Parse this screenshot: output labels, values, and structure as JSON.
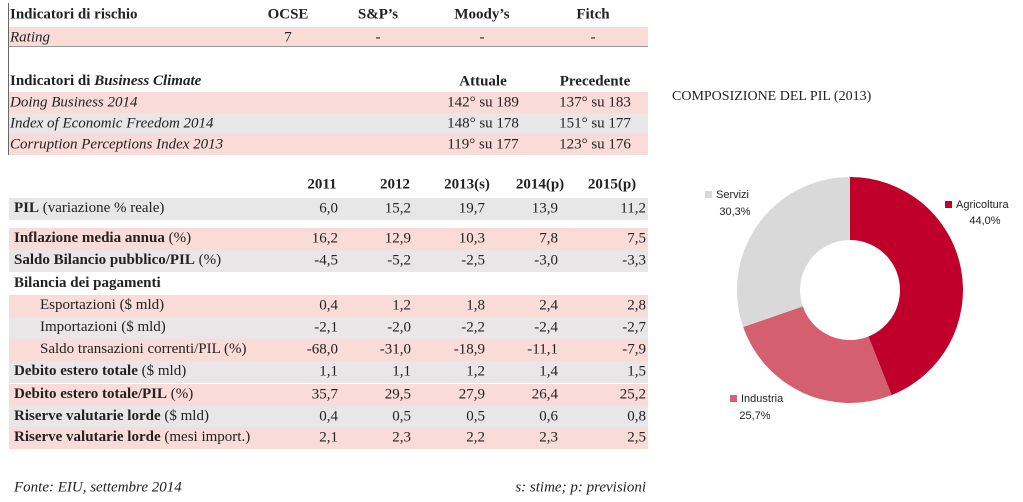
{
  "risk": {
    "header": [
      "Indicatori di rischio",
      "OCSE",
      "S&P’s",
      "Moody’s",
      "Fitch"
    ],
    "rows": [
      [
        "Rating",
        "7",
        "-",
        "-",
        "-"
      ]
    ]
  },
  "business": {
    "title_prefix": "Indicatori di ",
    "title_emph": "Business Climate",
    "columns": [
      "Attuale",
      "Precedente"
    ],
    "rows": [
      [
        "Doing Business 2014",
        "142° su 189",
        "137° su 183"
      ],
      [
        "Index of Economic Freedom 2014",
        "148° su 178",
        "151° su 177"
      ],
      [
        "Corruption Perceptions Index 2013",
        "119° su 177",
        "123° su 176"
      ]
    ]
  },
  "macro": {
    "columns": [
      "2011",
      "2012",
      "2013(s)",
      "2014(p)",
      "2015(p)"
    ],
    "rows": [
      {
        "bold": "PIL",
        "text": " (variazione % reale)",
        "values": [
          "6,0",
          "15,2",
          "19,7",
          "13,9",
          "11,2"
        ]
      },
      {
        "bold": "Inflazione media annua",
        "text": " (%)",
        "values": [
          "16,2",
          "12,9",
          "10,3",
          "7,8",
          "7,5"
        ]
      },
      {
        "bold": "Saldo Bilancio pubblico/PIL",
        "text": " (%)",
        "values": [
          "-4,5",
          "-5,2",
          "-2,5",
          "-3,0",
          "-3,3"
        ]
      },
      {
        "bold": "Bilancia dei pagamenti"
      },
      {
        "text": "Esportazioni ($ mld)",
        "values": [
          "0,4",
          "1,2",
          "1,8",
          "2,4",
          "2,8"
        ]
      },
      {
        "text": "Importazioni ($ mld)",
        "values": [
          "-2,1",
          "-2,0",
          "-2,2",
          "-2,4",
          "-2,7"
        ]
      },
      {
        "text": "Saldo transazioni correnti/PIL (%)",
        "values": [
          "-68,0",
          "-31,0",
          "-18,9",
          "-11,1",
          "-7,9"
        ]
      },
      {
        "bold": "Debito estero totale",
        "text": " ($ mld)",
        "values": [
          "1,1",
          "1,1",
          "1,2",
          "1,4",
          "1,5"
        ]
      },
      {
        "bold": "Debito estero totale/PIL",
        "text": " (%)",
        "values": [
          "35,7",
          "29,5",
          "27,9",
          "26,4",
          "25,2"
        ]
      },
      {
        "bold": "Riserve valutarie lorde",
        "text": " ($ mld)",
        "values": [
          "0,4",
          "0,5",
          "0,5",
          "0,6",
          "0,8"
        ]
      },
      {
        "bold": "Riserve valutarie lorde",
        "text": " (mesi import.)",
        "values": [
          "2,1",
          "2,3",
          "2,2",
          "2,3",
          "2,5"
        ]
      }
    ]
  },
  "chart_data": {
    "type": "donut",
    "title": "COMPOSIZIONE DEL PIL (2013)",
    "categories": [
      "Agricoltura",
      "Industria",
      "Servizi"
    ],
    "values": [
      44.0,
      25.7,
      30.3
    ],
    "value_labels": [
      "44,0%",
      "25,7%",
      "30,3%"
    ],
    "colors": [
      "#c0002a",
      "#d4606f",
      "#d9d9d9"
    ]
  },
  "footer": {
    "source": "Fonte: EIU, settembre 2014",
    "note": "s: stime; p: previsioni"
  }
}
